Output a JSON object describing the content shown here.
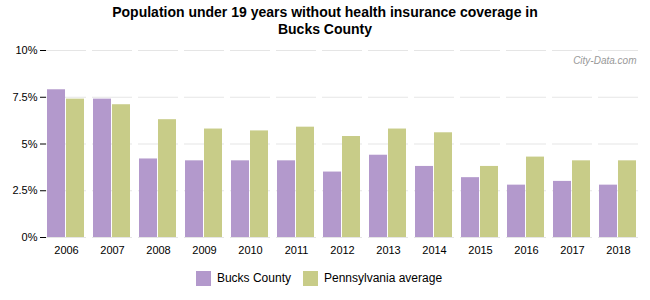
{
  "chart_data": {
    "type": "bar",
    "title": "Population under 19 years without health insurance coverage in\nBucks County",
    "categories": [
      "2006",
      "2007",
      "2008",
      "2009",
      "2010",
      "2011",
      "2012",
      "2013",
      "2014",
      "2015",
      "2016",
      "2017",
      "2018"
    ],
    "series": [
      {
        "name": "Bucks County",
        "color": "#b399cc",
        "values": [
          7.9,
          7.4,
          4.2,
          4.1,
          4.1,
          4.1,
          3.5,
          4.4,
          3.8,
          3.2,
          2.8,
          3.0,
          2.8
        ]
      },
      {
        "name": "Pennsylvania average",
        "color": "#c8cc88",
        "values": [
          7.4,
          7.1,
          6.3,
          5.8,
          5.7,
          5.9,
          5.4,
          5.8,
          5.6,
          3.8,
          4.3,
          4.1,
          4.1
        ]
      }
    ],
    "ylim": [
      0,
      10
    ],
    "yticks": [
      {
        "value": 0,
        "label": "0%"
      },
      {
        "value": 2.5,
        "label": "2.5%"
      },
      {
        "value": 5.0,
        "label": "5%"
      },
      {
        "value": 7.5,
        "label": "7.5%"
      },
      {
        "value": 10.0,
        "label": "10%"
      }
    ],
    "grid": true,
    "legend": "bottom",
    "annotations": [
      "City-Data.com"
    ]
  }
}
